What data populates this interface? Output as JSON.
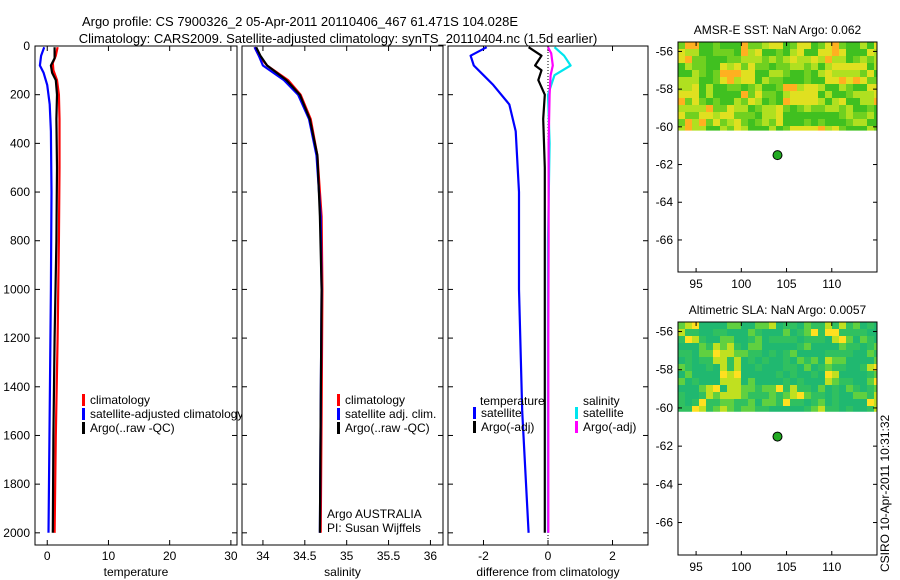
{
  "title": {
    "line1": "Argo profile: CS 7900326_2 05-Apr-2011 20110406_467 61.471S 104.028E",
    "line2": "Climatology: CARS2009. Satellite-adjusted climatology: synTS_20110404.nc (1.5d earlier)"
  },
  "side_label": "CSIRO 10-Apr-2011 10:31:32",
  "colors": {
    "clim": "#ff0000",
    "sat": "#0000ff",
    "argo": "#000000",
    "sat_sal": "#00e5ee",
    "argo_sal": "#ff00ff",
    "float_dot": "#22aa22"
  },
  "chart_data": [
    {
      "id": "temperature",
      "type": "line",
      "xlabel": "temperature",
      "xlim": [
        -2,
        31
      ],
      "xticks": [
        "0",
        "10",
        "20",
        "30"
      ],
      "xtick_values": [
        0,
        10,
        20,
        30
      ],
      "ylim": [
        0,
        2050
      ],
      "yticks": [
        "0",
        "200",
        "400",
        "600",
        "800",
        "1000",
        "1200",
        "1400",
        "1600",
        "1800",
        "2000"
      ],
      "ytick_values": [
        0,
        200,
        400,
        600,
        800,
        1000,
        1200,
        1400,
        1600,
        1800,
        2000
      ],
      "legend": [
        "climatology",
        "satellite-adjusted climatology",
        "Argo(..raw -QC)"
      ],
      "series": [
        {
          "name": "climatology",
          "color": "clim",
          "points": [
            [
              1.7,
              5
            ],
            [
              1.4,
              40
            ],
            [
              0.9,
              70
            ],
            [
              1.0,
              100
            ],
            [
              1.6,
              140
            ],
            [
              1.9,
              200
            ],
            [
              2.0,
              300
            ],
            [
              2.0,
              500
            ],
            [
              1.9,
              800
            ],
            [
              1.7,
              1200
            ],
            [
              1.4,
              1600
            ],
            [
              1.2,
              2000
            ]
          ]
        },
        {
          "name": "satellite-adjusted climatology",
          "color": "sat",
          "points": [
            [
              -0.5,
              5
            ],
            [
              -1.0,
              40
            ],
            [
              -1.2,
              80
            ],
            [
              -0.6,
              110
            ],
            [
              0.0,
              160
            ],
            [
              0.4,
              240
            ],
            [
              0.6,
              350
            ],
            [
              0.7,
              600
            ],
            [
              0.6,
              1000
            ],
            [
              0.4,
              1500
            ],
            [
              0.2,
              2000
            ]
          ]
        },
        {
          "name": "Argo(..raw -QC)",
          "color": "argo",
          "points": [
            [
              1.2,
              5
            ],
            [
              1.2,
              50
            ],
            [
              0.6,
              80
            ],
            [
              0.8,
              110
            ],
            [
              1.4,
              140
            ],
            [
              1.6,
              200
            ],
            [
              1.5,
              300
            ],
            [
              1.6,
              500
            ],
            [
              1.5,
              800
            ],
            [
              1.2,
              1200
            ],
            [
              1.0,
              1600
            ],
            [
              0.9,
              2000
            ]
          ]
        }
      ]
    },
    {
      "id": "salinity",
      "type": "line",
      "xlabel": "salinity",
      "xlim": [
        33.75,
        36.15
      ],
      "xticks": [
        "34",
        "34.5",
        "35",
        "35.5",
        "36"
      ],
      "xtick_values": [
        34,
        34.5,
        35,
        35.5,
        36
      ],
      "ylim": [
        0,
        2050
      ],
      "legend": [
        "climatology",
        "satellite adj. clim.",
        "Argo(..raw -QC)"
      ],
      "annotation": [
        "Argo AUSTRALIA",
        "PI: Susan Wijffels"
      ],
      "series": [
        {
          "name": "climatology",
          "color": "clim",
          "points": [
            [
              33.9,
              5
            ],
            [
              33.95,
              40
            ],
            [
              34.05,
              80
            ],
            [
              34.3,
              140
            ],
            [
              34.45,
              200
            ],
            [
              34.57,
              300
            ],
            [
              34.65,
              450
            ],
            [
              34.7,
              700
            ],
            [
              34.71,
              1000
            ],
            [
              34.7,
              1500
            ],
            [
              34.69,
              2000
            ]
          ]
        },
        {
          "name": "satellite adj. clim.",
          "color": "sat",
          "points": [
            [
              33.9,
              5
            ],
            [
              33.95,
              40
            ],
            [
              34.0,
              80
            ],
            [
              34.25,
              140
            ],
            [
              34.42,
              200
            ],
            [
              34.55,
              300
            ],
            [
              34.64,
              450
            ],
            [
              34.69,
              700
            ],
            [
              34.7,
              1000
            ],
            [
              34.69,
              1500
            ],
            [
              34.68,
              2000
            ]
          ]
        },
        {
          "name": "Argo(..raw -QC)",
          "color": "argo",
          "points": [
            [
              33.92,
              5
            ],
            [
              33.97,
              40
            ],
            [
              34.05,
              80
            ],
            [
              34.28,
              140
            ],
            [
              34.44,
              200
            ],
            [
              34.56,
              300
            ],
            [
              34.65,
              450
            ],
            [
              34.68,
              700
            ],
            [
              34.7,
              1000
            ],
            [
              34.69,
              1500
            ],
            [
              34.68,
              2000
            ]
          ]
        }
      ]
    },
    {
      "id": "difference",
      "type": "line",
      "xlabel": "difference from climatology",
      "xlim": [
        -3.1,
        3.1
      ],
      "xticks": [
        "-2",
        "0",
        "2"
      ],
      "xtick_values": [
        -2,
        0,
        2
      ],
      "ylim": [
        0,
        2050
      ],
      "legend_groups": [
        {
          "heading": "temperature",
          "items": [
            "satellite",
            "Argo(-adj)"
          ]
        },
        {
          "heading": "salinity",
          "items": [
            "satellite",
            "Argo(-adj)"
          ]
        }
      ],
      "series": [
        {
          "name": "temperature satellite",
          "color": "sat",
          "points": [
            [
              -1.9,
              5
            ],
            [
              -2.4,
              40
            ],
            [
              -2.3,
              80
            ],
            [
              -2.0,
              120
            ],
            [
              -1.7,
              160
            ],
            [
              -1.2,
              240
            ],
            [
              -1.0,
              350
            ],
            [
              -0.9,
              600
            ],
            [
              -0.9,
              1000
            ],
            [
              -0.8,
              1500
            ],
            [
              -0.6,
              2000
            ]
          ]
        },
        {
          "name": "temperature Argo(-adj)",
          "color": "argo",
          "points": [
            [
              -0.6,
              5
            ],
            [
              -0.2,
              40
            ],
            [
              -0.4,
              80
            ],
            [
              -0.2,
              100
            ],
            [
              -0.3,
              140
            ],
            [
              -0.1,
              200
            ],
            [
              -0.15,
              300
            ],
            [
              -0.1,
              500
            ],
            [
              -0.1,
              800
            ],
            [
              -0.1,
              1200
            ],
            [
              -0.1,
              2000
            ]
          ]
        },
        {
          "name": "salinity satellite",
          "color": "sat_sal",
          "points": [
            [
              0.2,
              5
            ],
            [
              0.5,
              40
            ],
            [
              0.7,
              80
            ],
            [
              0.2,
              120
            ],
            [
              0.0,
              200
            ],
            [
              0.05,
              400
            ],
            [
              0.0,
              800
            ],
            [
              0.0,
              1200
            ],
            [
              0.0,
              1600
            ],
            [
              0.0,
              2000
            ]
          ]
        },
        {
          "name": "salinity Argo(-adj)",
          "color": "argo_sal",
          "points": [
            [
              0.0,
              5
            ],
            [
              0.1,
              30
            ],
            [
              0.15,
              80
            ],
            [
              0.08,
              120
            ],
            [
              0.05,
              200
            ],
            [
              0.02,
              400
            ],
            [
              0.02,
              800
            ],
            [
              0.01,
              1200
            ],
            [
              0.01,
              2000
            ]
          ]
        }
      ]
    },
    {
      "id": "amsr_sst",
      "type": "heatmap",
      "title": "AMSR-E SST: NaN Argo: 0.062",
      "xlim": [
        93,
        115
      ],
      "ylim": [
        -67.7,
        -55.5
      ],
      "xticks": [
        "95",
        "100",
        "105",
        "110"
      ],
      "xtick_values": [
        95,
        100,
        105,
        110
      ],
      "yticks": [
        "-56",
        "-58",
        "-60",
        "-62",
        "-64",
        "-66"
      ],
      "ytick_values": [
        -56,
        -58,
        -60,
        -62,
        -64,
        -66
      ],
      "data_extent_lat": [
        -60.2,
        -55.5
      ],
      "float_position": [
        104,
        -61.5
      ]
    },
    {
      "id": "altimetric_sla",
      "type": "heatmap",
      "title": "Altimetric SLA: NaN Argo: 0.0057",
      "xlim": [
        93,
        115
      ],
      "ylim": [
        -67.7,
        -55.5
      ],
      "xticks": [
        "95",
        "100",
        "105",
        "110"
      ],
      "xtick_values": [
        95,
        100,
        105,
        110
      ],
      "yticks": [
        "-56",
        "-58",
        "-60",
        "-62",
        "-64",
        "-66"
      ],
      "ytick_values": [
        -56,
        -58,
        -60,
        -62,
        -64,
        -66
      ],
      "data_extent_lat": [
        -60.2,
        -55.5
      ],
      "float_position": [
        104,
        -61.5
      ]
    }
  ]
}
